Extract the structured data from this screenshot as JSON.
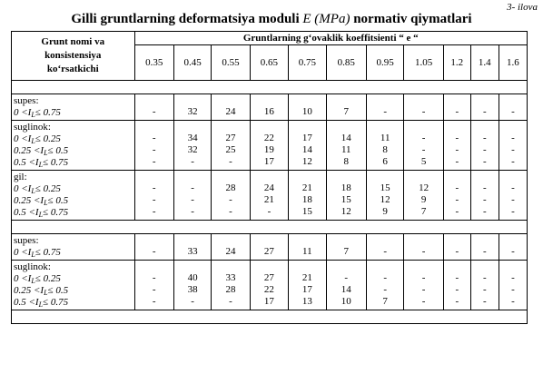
{
  "appendix_label": "3- ilova",
  "title": {
    "before": "Gilli gruntlarning deformatsiya moduli ",
    "italic": "E (MPa)",
    "after": " normativ qiymatlari"
  },
  "header": {
    "row_label_lines": [
      "Grunt nomi va",
      "konsistensiya",
      "ko‘rsatkichi"
    ],
    "group_label": "Gruntlarning g‘ovaklik koeffitsienti “ e “",
    "columns": [
      "0.35",
      "0.45",
      "0.55",
      "0.65",
      "0.75",
      "0.85",
      "0.95",
      "1.05",
      "1.2",
      "1.4",
      "1.6"
    ]
  },
  "groups": [
    {
      "name": "supes:",
      "spacer_before": true,
      "rows": [
        {
          "cond": {
            "pre": "0 <I",
            "sub": "L",
            "post": "≤ 0.75"
          },
          "values": [
            "-",
            "32",
            "24",
            "16",
            "10",
            "7",
            "-",
            "-",
            "-",
            "-",
            "-"
          ]
        }
      ]
    },
    {
      "name": "suglinok:",
      "spacer_before": false,
      "rows": [
        {
          "cond": {
            "pre": "0 <I",
            "sub": "L",
            "post": "≤ 0.25"
          },
          "values": [
            "-",
            "34",
            "27",
            "22",
            "17",
            "14",
            "11",
            "-",
            "-",
            "-",
            "-"
          ]
        },
        {
          "cond": {
            "pre": "0.25 <I",
            "sub": "L",
            "post": "≤ 0.5"
          },
          "values": [
            "-",
            "32",
            "25",
            "19",
            "14",
            "11",
            "8",
            "-",
            "-",
            "-",
            "-"
          ]
        },
        {
          "cond": {
            "pre": "0.5 <I",
            "sub": "L",
            "post": "≤ 0.75"
          },
          "values": [
            "-",
            "-",
            "-",
            "17",
            "12",
            "8",
            "6",
            "5",
            "-",
            "-",
            "-"
          ]
        }
      ]
    },
    {
      "name": "gil:",
      "spacer_before": false,
      "rows": [
        {
          "cond": {
            "pre": "0 <I",
            "sub": "L",
            "post": "≤ 0.25"
          },
          "values": [
            "-",
            "-",
            "28",
            "24",
            "21",
            "18",
            "15",
            "12",
            "-",
            "-",
            "-"
          ]
        },
        {
          "cond": {
            "pre": "0.25 <I",
            "sub": "L",
            "post": "≤ 0.5"
          },
          "values": [
            "-",
            "-",
            "-",
            "21",
            "18",
            "15",
            "12",
            "9",
            "-",
            "-",
            "-"
          ]
        },
        {
          "cond": {
            "pre": "0.5 <I",
            "sub": "L",
            "post": "≤ 0.75"
          },
          "values": [
            "-",
            "-",
            "-",
            "-",
            "15",
            "12",
            "9",
            "7",
            "-",
            "-",
            "-"
          ]
        }
      ]
    },
    {
      "name": "supes:",
      "spacer_before": true,
      "rows": [
        {
          "cond": {
            "pre": "0 <I",
            "sub": "L",
            "post": "≤ 0.75"
          },
          "values": [
            "-",
            "33",
            "24",
            "27",
            "11",
            "7",
            "-",
            "-",
            "-",
            "-",
            "-"
          ]
        }
      ]
    },
    {
      "name": "suglinok:",
      "spacer_before": false,
      "rows": [
        {
          "cond": {
            "pre": "0 <I",
            "sub": "L",
            "post": "≤ 0.25"
          },
          "values": [
            "-",
            "40",
            "33",
            "27",
            "21",
            "-",
            "-",
            "-",
            "-",
            "-",
            "-"
          ]
        },
        {
          "cond": {
            "pre": "0.25 <I",
            "sub": "L",
            "post": "≤ 0.5"
          },
          "values": [
            "-",
            "38",
            "28",
            "22",
            "17",
            "14",
            "-",
            "-",
            "-",
            "-",
            "-"
          ]
        },
        {
          "cond": {
            "pre": "0.5 <I",
            "sub": "L",
            "post": "≤ 0.75"
          },
          "values": [
            "-",
            "-",
            "-",
            "17",
            "13",
            "10",
            "7",
            "-",
            "-",
            "-",
            "-"
          ]
        }
      ]
    }
  ],
  "trailing_spacer": true
}
